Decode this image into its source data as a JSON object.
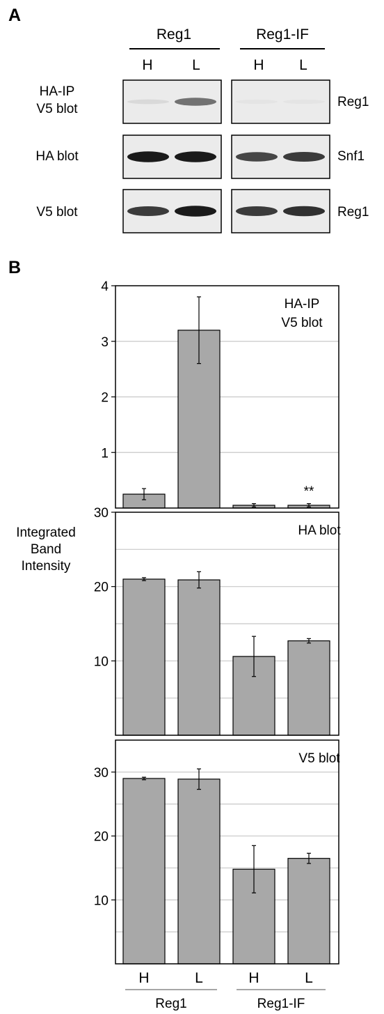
{
  "panel_a": {
    "label": "A",
    "groups": [
      {
        "name": "Reg1",
        "lanes": [
          "H",
          "L"
        ]
      },
      {
        "name": "Reg1-IF",
        "lanes": [
          "H",
          "L"
        ]
      }
    ],
    "rows": [
      {
        "left_label_lines": [
          "HA-IP",
          "V5 blot"
        ],
        "right_label": "Reg1",
        "band_intensity": [
          [
            0.08,
            0.55
          ],
          [
            0.03,
            0.03
          ]
        ]
      },
      {
        "left_label_lines": [
          "HA blot"
        ],
        "right_label": "Snf1",
        "band_intensity": [
          [
            0.95,
            0.95
          ],
          [
            0.75,
            0.8
          ]
        ]
      },
      {
        "left_label_lines": [
          "V5 blot"
        ],
        "right_label": "Reg1",
        "band_intensity": [
          [
            0.8,
            0.95
          ],
          [
            0.8,
            0.85
          ]
        ]
      }
    ]
  },
  "panel_b": {
    "label": "B",
    "ylabel_lines": [
      "Integrated",
      "Band",
      "Intensity"
    ],
    "categories": [
      "H",
      "L",
      "H",
      "L"
    ],
    "groups": [
      {
        "name": "Reg1",
        "members": [
          0,
          1
        ]
      },
      {
        "name": "Reg1-IF",
        "members": [
          2,
          3
        ]
      }
    ]
  },
  "chart_data": [
    {
      "type": "bar",
      "title": "HA-IP V5 blot",
      "title_lines": [
        "HA-IP",
        "V5 blot"
      ],
      "categories": [
        "H",
        "L",
        "H",
        "L"
      ],
      "values": [
        0.25,
        3.2,
        0.05,
        0.05
      ],
      "errors": [
        0.1,
        0.6,
        0.03,
        0.03
      ],
      "annotations": [
        {
          "category_index": 3,
          "text": "**"
        }
      ],
      "ylim": [
        0,
        4
      ],
      "yticks": [
        1,
        2,
        3,
        4
      ],
      "ytick_labels": [
        "1",
        "2",
        "3",
        "4"
      ],
      "grid": [
        1,
        2,
        3
      ]
    },
    {
      "type": "bar",
      "title": "HA blot",
      "title_lines": [
        "HA blot"
      ],
      "categories": [
        "H",
        "L",
        "H",
        "L"
      ],
      "values": [
        21,
        20.9,
        10.6,
        12.7
      ],
      "errors": [
        0.2,
        1.1,
        2.7,
        0.3
      ],
      "annotations": [],
      "ylim": [
        0,
        30
      ],
      "yticks": [
        10,
        20,
        30
      ],
      "ytick_labels": [
        "10",
        "20",
        "30"
      ],
      "grid": [
        5,
        10,
        15,
        20,
        25
      ]
    },
    {
      "type": "bar",
      "title": "V5 blot",
      "title_lines": [
        "V5 blot"
      ],
      "categories": [
        "H",
        "L",
        "H",
        "L"
      ],
      "values": [
        29,
        28.9,
        14.8,
        16.5
      ],
      "errors": [
        0.2,
        1.6,
        3.7,
        0.8
      ],
      "annotations": [],
      "ylim": [
        0,
        35
      ],
      "yticks": [
        10,
        20,
        30
      ],
      "ytick_labels": [
        "10",
        "20",
        "30"
      ],
      "grid": [
        5,
        10,
        15,
        20,
        25,
        30
      ]
    }
  ]
}
